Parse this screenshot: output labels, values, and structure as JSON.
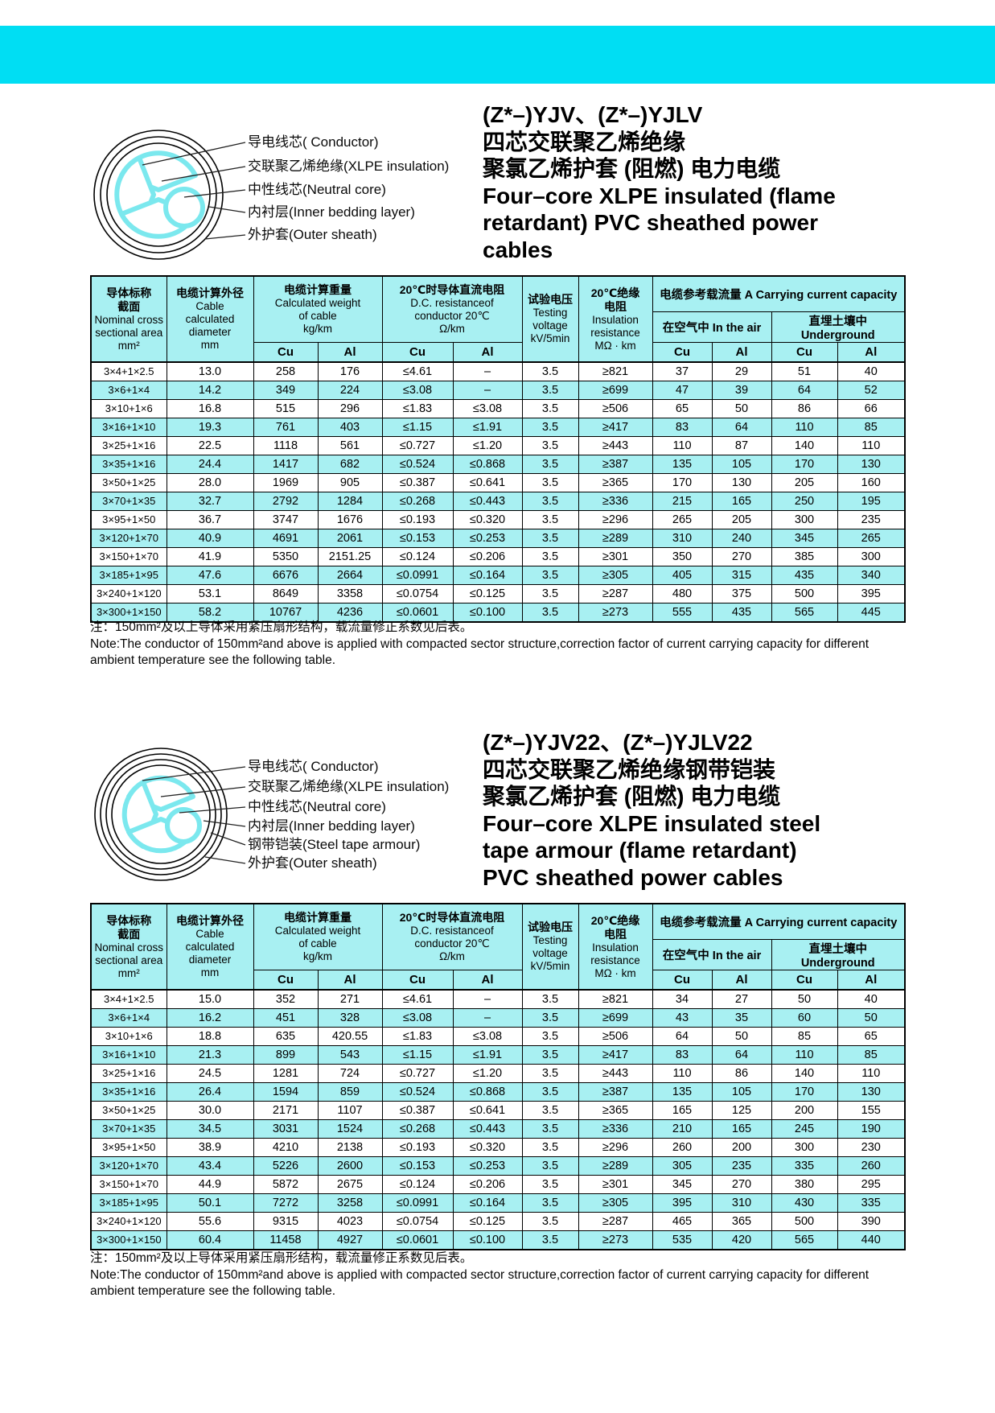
{
  "colors": {
    "band": "#00def3",
    "stripe": "#a8f0f2",
    "core_outline": "#7be8ee"
  },
  "sections": [
    {
      "title_lines": [
        "(Z*–)YJV、(Z*–)YJLV",
        "四芯交联聚乙烯绝缘",
        "聚氯乙烯护套 (阻燃) 电力电缆",
        "Four–core XLPE insulated (flame",
        "retardant) PVC sheathed power",
        "cables"
      ],
      "diagram_labels": [
        "导电线芯( Conductor)",
        "交联聚乙烯绝缘(XLPE  insulation)",
        "中性线芯(Neutral core)",
        "内衬层(Inner bedding layer)",
        "外护套(Outer sheath)"
      ],
      "note_lines": [
        "注：150mm²及以上导体采用紧压扇形结构，载流量修正系数见后表。",
        "Note:The conductor of 150mm²and above is applied with compacted sector structure,correction factor of current carrying capacity for different",
        "ambient temperature see the following table."
      ],
      "table": {
        "header": {
          "col_size": {
            "zh": [
              "导体标称",
              "截面"
            ],
            "en": [
              "Nominal cross",
              "sectional area",
              "mm²"
            ]
          },
          "col_dia": {
            "zh": [
              "电缆计算外径"
            ],
            "en": [
              "Cable",
              "calculated",
              "diameter",
              "mm"
            ]
          },
          "col_weight": {
            "zh": [
              "电缆计算重量"
            ],
            "en": [
              "Calculated weight",
              "of cable",
              "kg/km"
            ]
          },
          "col_res": {
            "zh": [
              "20℃时导体直流电阻"
            ],
            "en": [
              "D.C. resistanceof",
              "conductor 20℃",
              "Ω/km"
            ]
          },
          "col_tv": {
            "zh": [
              "试验电压"
            ],
            "en": [
              "Testing",
              "voltage",
              "kV/5min"
            ]
          },
          "col_ir": {
            "zh": [
              "20℃绝缘",
              "电阻"
            ],
            "en": [
              "Insulation",
              "resistance",
              "MΩ · km"
            ]
          },
          "col_cap": "电缆参考载流量 A Carrying current capacity",
          "col_air": "在空气中 In the air",
          "col_ug": "直埋土壤中 Underground",
          "cu": "Cu",
          "al": "Al"
        },
        "rows": [
          [
            "3×4+1×2.5",
            "13.0",
            "258",
            "176",
            "≤4.61",
            "–",
            "3.5",
            "≥821",
            "37",
            "29",
            "51",
            "40"
          ],
          [
            "3×6+1×4",
            "14.2",
            "349",
            "224",
            "≤3.08",
            "–",
            "3.5",
            "≥699",
            "47",
            "39",
            "64",
            "52"
          ],
          [
            "3×10+1×6",
            "16.8",
            "515",
            "296",
            "≤1.83",
            "≤3.08",
            "3.5",
            "≥506",
            "65",
            "50",
            "86",
            "66"
          ],
          [
            "3×16+1×10",
            "19.3",
            "761",
            "403",
            "≤1.15",
            "≤1.91",
            "3.5",
            "≥417",
            "83",
            "64",
            "110",
            "85"
          ],
          [
            "3×25+1×16",
            "22.5",
            "1118",
            "561",
            "≤0.727",
            "≤1.20",
            "3.5",
            "≥443",
            "110",
            "87",
            "140",
            "110"
          ],
          [
            "3×35+1×16",
            "24.4",
            "1417",
            "682",
            "≤0.524",
            "≤0.868",
            "3.5",
            "≥387",
            "135",
            "105",
            "170",
            "130"
          ],
          [
            "3×50+1×25",
            "28.0",
            "1969",
            "905",
            "≤0.387",
            "≤0.641",
            "3.5",
            "≥365",
            "170",
            "130",
            "205",
            "160"
          ],
          [
            "3×70+1×35",
            "32.7",
            "2792",
            "1284",
            "≤0.268",
            "≤0.443",
            "3.5",
            "≥336",
            "215",
            "165",
            "250",
            "195"
          ],
          [
            "3×95+1×50",
            "36.7",
            "3747",
            "1676",
            "≤0.193",
            "≤0.320",
            "3.5",
            "≥296",
            "265",
            "205",
            "300",
            "235"
          ],
          [
            "3×120+1×70",
            "40.9",
            "4691",
            "2061",
            "≤0.153",
            "≤0.253",
            "3.5",
            "≥289",
            "310",
            "240",
            "345",
            "265"
          ],
          [
            "3×150+1×70",
            "41.9",
            "5350",
            "2151.25",
            "≤0.124",
            "≤0.206",
            "3.5",
            "≥301",
            "350",
            "270",
            "385",
            "300"
          ],
          [
            "3×185+1×95",
            "47.6",
            "6676",
            "2664",
            "≤0.0991",
            "≤0.164",
            "3.5",
            "≥305",
            "405",
            "315",
            "435",
            "340"
          ],
          [
            "3×240+1×120",
            "53.1",
            "8649",
            "3358",
            "≤0.0754",
            "≤0.125",
            "3.5",
            "≥287",
            "480",
            "375",
            "500",
            "395"
          ],
          [
            "3×300+1×150",
            "58.2",
            "10767",
            "4236",
            "≤0.0601",
            "≤0.100",
            "3.5",
            "≥273",
            "555",
            "435",
            "565",
            "445"
          ]
        ]
      }
    },
    {
      "title_lines": [
        "(Z*–)YJV22、(Z*–)YJLV22",
        "四芯交联聚乙烯绝缘钢带铠装",
        "聚氯乙烯护套 (阻燃) 电力电缆",
        "Four–core XLPE insulated steel",
        "tape armour (flame retardant)",
        "PVC sheathed power cables"
      ],
      "diagram_labels": [
        "导电线芯( Conductor)",
        "交联聚乙烯绝缘(XLPE  insulation)",
        "中性线芯(Neutral core)",
        "内衬层(Inner bedding layer)",
        "钢带铠装(Steel tape armour)",
        "外护套(Outer sheath)"
      ],
      "note_lines": [
        "注：150mm²及以上导体采用紧压扇形结构，载流量修正系数见后表。",
        "Note:The conductor of 150mm²and above is applied with compacted sector structure,correction factor of current carrying capacity for different",
        "ambient temperature see the following table."
      ],
      "table": {
        "header": {
          "col_size": {
            "zh": [
              "导体标称",
              "截面"
            ],
            "en": [
              "Nominal cross",
              "sectional area",
              "mm²"
            ]
          },
          "col_dia": {
            "zh": [
              "电缆计算外径"
            ],
            "en": [
              "Cable",
              "calculated",
              "diameter",
              "mm"
            ]
          },
          "col_weight": {
            "zh": [
              "电缆计算重量"
            ],
            "en": [
              "Calculated weight",
              "of cable",
              "kg/km"
            ]
          },
          "col_res": {
            "zh": [
              "20℃时导体直流电阻"
            ],
            "en": [
              "D.C. resistanceof",
              "conductor 20℃",
              "Ω/km"
            ]
          },
          "col_tv": {
            "zh": [
              "试验电压"
            ],
            "en": [
              "Testing",
              "voltage",
              "kV/5min"
            ]
          },
          "col_ir": {
            "zh": [
              "20℃绝缘",
              "电阻"
            ],
            "en": [
              "Insulation",
              "resistance",
              "MΩ · km"
            ]
          },
          "col_cap": "电缆参考载流量 A Carrying current capacity",
          "col_air": "在空气中 In the air",
          "col_ug": "直埋土壤中 Underground",
          "cu": "Cu",
          "al": "Al"
        },
        "rows": [
          [
            "3×4+1×2.5",
            "15.0",
            "352",
            "271",
            "≤4.61",
            "–",
            "3.5",
            "≥821",
            "34",
            "27",
            "50",
            "40"
          ],
          [
            "3×6+1×4",
            "16.2",
            "451",
            "328",
            "≤3.08",
            "–",
            "3.5",
            "≥699",
            "43",
            "35",
            "60",
            "50"
          ],
          [
            "3×10+1×6",
            "18.8",
            "635",
            "420.55",
            "≤1.83",
            "≤3.08",
            "3.5",
            "≥506",
            "64",
            "50",
            "85",
            "65"
          ],
          [
            "3×16+1×10",
            "21.3",
            "899",
            "543",
            "≤1.15",
            "≤1.91",
            "3.5",
            "≥417",
            "83",
            "64",
            "110",
            "85"
          ],
          [
            "3×25+1×16",
            "24.5",
            "1281",
            "724",
            "≤0.727",
            "≤1.20",
            "3.5",
            "≥443",
            "110",
            "86",
            "140",
            "110"
          ],
          [
            "3×35+1×16",
            "26.4",
            "1594",
            "859",
            "≤0.524",
            "≤0.868",
            "3.5",
            "≥387",
            "135",
            "105",
            "170",
            "130"
          ],
          [
            "3×50+1×25",
            "30.0",
            "2171",
            "1107",
            "≤0.387",
            "≤0.641",
            "3.5",
            "≥365",
            "165",
            "125",
            "200",
            "155"
          ],
          [
            "3×70+1×35",
            "34.5",
            "3031",
            "1524",
            "≤0.268",
            "≤0.443",
            "3.5",
            "≥336",
            "210",
            "165",
            "245",
            "190"
          ],
          [
            "3×95+1×50",
            "38.9",
            "4210",
            "2138",
            "≤0.193",
            "≤0.320",
            "3.5",
            "≥296",
            "260",
            "200",
            "300",
            "230"
          ],
          [
            "3×120+1×70",
            "43.4",
            "5226",
            "2600",
            "≤0.153",
            "≤0.253",
            "3.5",
            "≥289",
            "305",
            "235",
            "335",
            "260"
          ],
          [
            "3×150+1×70",
            "44.9",
            "5872",
            "2675",
            "≤0.124",
            "≤0.206",
            "3.5",
            "≥301",
            "345",
            "270",
            "380",
            "295"
          ],
          [
            "3×185+1×95",
            "50.1",
            "7272",
            "3258",
            "≤0.0991",
            "≤0.164",
            "3.5",
            "≥305",
            "395",
            "310",
            "430",
            "335"
          ],
          [
            "3×240+1×120",
            "55.6",
            "9315",
            "4023",
            "≤0.0754",
            "≤0.125",
            "3.5",
            "≥287",
            "465",
            "365",
            "500",
            "390"
          ],
          [
            "3×300+1×150",
            "60.4",
            "11458",
            "4927",
            "≤0.0601",
            "≤0.100",
            "3.5",
            "≥273",
            "535",
            "420",
            "565",
            "440"
          ]
        ]
      }
    }
  ]
}
